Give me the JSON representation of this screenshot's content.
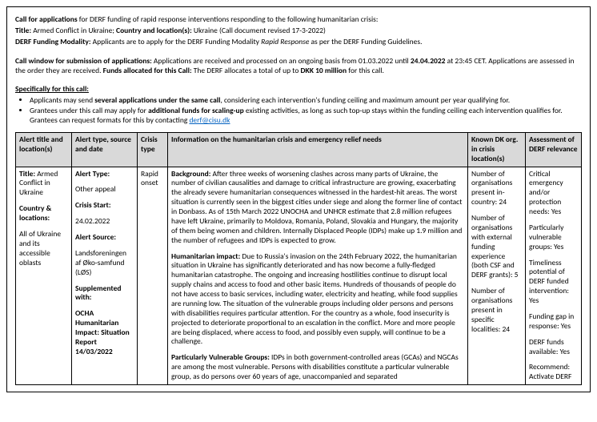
{
  "intro": {
    "line1_prefix": "Call for applications",
    "line1_rest": " for DERF funding of rapid response interventions responding to the following humanitarian crisis:",
    "title_label": "Title:",
    "title_value": " Armed Conflict in Ukraine; ",
    "country_label": "Country and location(s):",
    "country_value": " Ukraine (Call document revised 17-3-2022)",
    "modality_label": "DERF Funding Modality:",
    "modality_value": "  Applicants are to apply for the DERF Funding Modality ",
    "modality_italic": "Rapid Response",
    "modality_rest": " as per the DERF Funding Guidelines.",
    "cw_label": "Call window for submission of applications:",
    "cw_text1": "  Applications are received and processed on an ongoing basis from 01.03.2022 until ",
    "cw_bold_date": "24.04.2022",
    "cw_text2": " at 23:45 CET. Applications are assessed in the order they are received. ",
    "funds_label": "Funds allocated for this Call:",
    "funds_value": " The DERF allocates a total of up to ",
    "funds_bold": "DKK 10 million",
    "funds_rest": " for this call.",
    "spec_header": "Specifically for this call:",
    "bullet1_a": "Applicants may send ",
    "bullet1_b": "several applications under the same call",
    "bullet1_c": ", considering each intervention's funding ceiling and maximum amount per year qualifying for.",
    "bullet2_a": "Grantees under this call may apply for ",
    "bullet2_b": "additional funds for scaling-up",
    "bullet2_c": " existing activities, as long as such top-up stays within the funding ceiling each intervention qualifies for. Grantees can request formats for this by contacting ",
    "email": "derf@cisu.dk"
  },
  "headers": {
    "c1": "Alert title and location(s)",
    "c2": "Alert type, source and date",
    "c3": "Crisis type",
    "c4": "Information on the humanitarian crisis and emergency relief needs",
    "c5": "Known DK org. in crisis location(s)",
    "c6": "Assessment of DERF relevance"
  },
  "col1": {
    "title_label": "Title:",
    "title_value": " Armed Conflict in Ukraine",
    "country_label": "Country & locations:",
    "country_value": "All of Ukraine and its accessible oblasts"
  },
  "col2": {
    "type_label": "Alert Type:",
    "type_value": "Other appeal",
    "start_label": "Crisis Start:",
    "start_value": "24.02.2022",
    "source_label": "Alert Source:",
    "source_value": "Landsforeningen af Øko-samfund (LØS)",
    "supp_label": "Supplemented with:",
    "supp_value": "OCHA Humanitarian Impact: Situation Report 14/03/2022"
  },
  "col3": {
    "value": "Rapid onset"
  },
  "col4": {
    "bg_label": "Background:",
    "bg_text": " After three weeks of worsening clashes across many parts of Ukraine, the number of civilian causalities and damage to critical infrastructure are growing, exacerbating the already severe humanitarian consequences witnessed in the hardest-hit areas. The worst situation is currently seen in the biggest cities under siege and along the former line of contact in Donbass. As of 15th March 2022 UNOCHA and UNHCR estimate that 2.8 million refugees have left Ukraine, primarily to Moldova, Romania, Poland, Slovakia and Hungary, the majority of them being women and children. Internally Displaced People (IDPs) make up 1.9 million and the number of refugees and IDPs is expected to grow.",
    "hi_label": "Humanitarian impact:",
    "hi_text": " Due to Russia's invasion on the 24th February 2022, the humanitarian situation in Ukraine has significantly deteriorated and has now become a fully-fledged humanitarian catastrophe. The ongoing and increasing hostilities continue to disrupt local supply chains and access to food and other basic items. Hundreds of thousands of people do not have access to basic services, including water, electricity and heating, while food supplies are running low. The situation of the vulnerable groups including older persons and persons with disabilities requires particular attention. For the country as a whole, food insecurity is projected to deteriorate proportional to an escalation in the conflict. More and more people are being displaced, where access to food, and possibly even supply, will continue to be a challenge.",
    "pvg_label": "Particularly Vulnerable Groups:",
    "pvg_text": " IDPs in both government-controlled areas (GCAs) and NGCAs are among the most vulnerable. Persons with disabilities constitute a particular vulnerable group, as do persons over 60 years of age, unaccompanied and separated"
  },
  "col5": {
    "b1": "Number of organisations present in-country: 24",
    "b2": "Number of organisations with external funding experience (both CSF and DERF grants): 5",
    "b3": "Number of organisations present in specific localities: 24"
  },
  "col6": {
    "b1": "Critical emergency and/or protection needs:  Yes",
    "b2": "Particularly vulnerable groups:  Yes",
    "b3": "Timeliness potential of DERF funded intervention: Yes",
    "b4": "Funding gap in response:  Yes",
    "b5": "DERF funds available:  Yes",
    "b6": "Recommend: Activate DERF"
  }
}
